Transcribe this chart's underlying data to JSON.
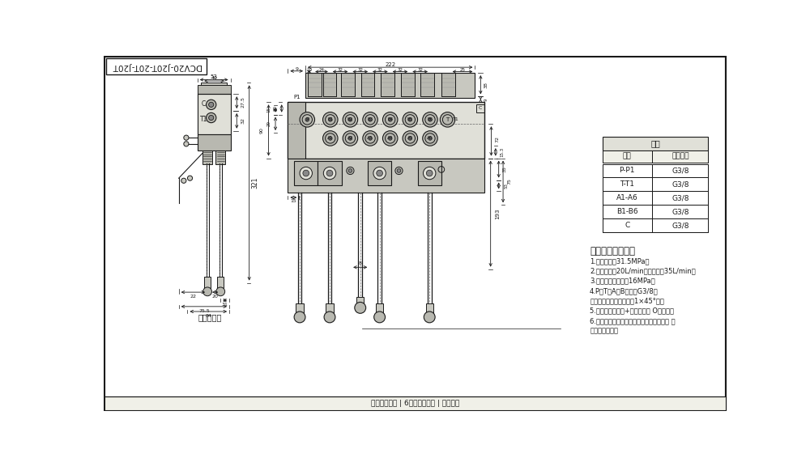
{
  "bg_color": "#ffffff",
  "draw_bg": "#f5f5f0",
  "line_color": "#1a1a1a",
  "title_text": "DCV20-J20T-20T-J20T",
  "subtitle": "液压原理图",
  "table_title": "阀体",
  "table_headers": [
    "接口",
    "螺纹规格"
  ],
  "table_rows": [
    [
      "P-P1",
      "G3/8"
    ],
    [
      "T-T1",
      "G3/8"
    ],
    [
      "A1-A6",
      "G3/8"
    ],
    [
      "B1-B6",
      "G3/8"
    ],
    [
      "C",
      "G3/8"
    ]
  ],
  "tech_title": "技术要求及参数：",
  "tech_items": [
    "1.额定压力：31.5MPa；",
    "2.额定流量：20L/min，最大流量35L/min；",
    "3.安装阀调定压力：16MPa；",
    "4.P、T、A、B口均为G3/8，",
    "均为平面密封，螺纹孔口1×45°角。",
    "5.控制方式：手动+弹簧复位， O型阀杆；",
    "6.阀体表面磷化处理，安全阀及螺堵镀锤， 支",
    "架后盖为铝本色"
  ],
  "footer_text": "工业液压系统 | 6联单块换向阀 | 厂家直销"
}
